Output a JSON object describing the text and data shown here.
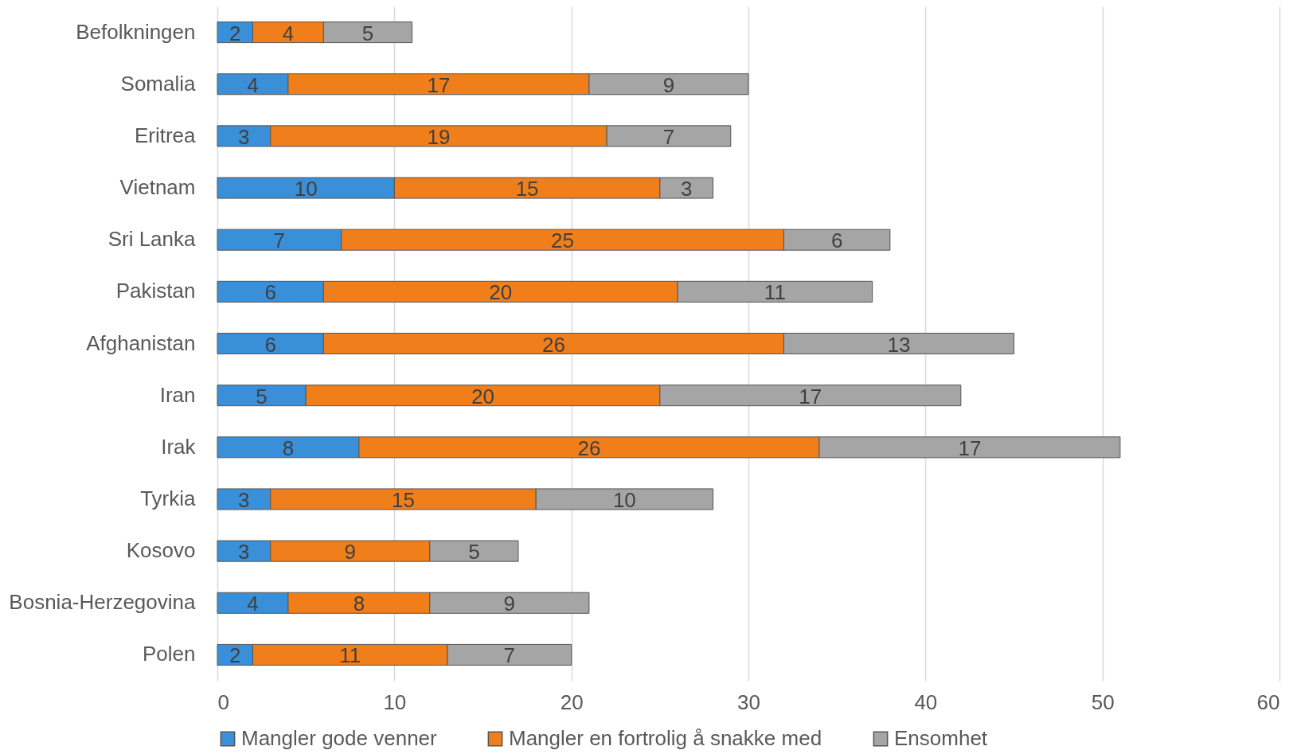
{
  "chart_data": {
    "type": "bar",
    "orientation": "horizontal",
    "stacked": true,
    "data_labels": true,
    "grid": "x",
    "legend": "bottom",
    "categories": [
      "Befolkningen",
      "Somalia",
      "Eritrea",
      "Vietnam",
      "Sri Lanka",
      "Pakistan",
      "Afghanistan",
      "Iran",
      "Irak",
      "Tyrkia",
      "Kosovo",
      "Bosnia-Herzegovina",
      "Polen"
    ],
    "series": [
      {
        "name": "Mangler gode venner",
        "color": "#3a8fd9",
        "values": [
          2,
          4,
          3,
          10,
          7,
          6,
          6,
          5,
          8,
          3,
          3,
          4,
          2
        ]
      },
      {
        "name": "Mangler en fortrolig å snakke med",
        "color": "#f07f1b",
        "values": [
          4,
          17,
          19,
          15,
          25,
          20,
          26,
          20,
          26,
          15,
          9,
          8,
          11
        ]
      },
      {
        "name": "Ensomhet",
        "color": "#a5a5a5",
        "values": [
          5,
          9,
          7,
          3,
          6,
          11,
          13,
          17,
          17,
          10,
          5,
          9,
          7
        ]
      }
    ],
    "xlim": [
      0,
      60
    ],
    "xticks": [
      0,
      10,
      20,
      30,
      40,
      50,
      60
    ]
  }
}
